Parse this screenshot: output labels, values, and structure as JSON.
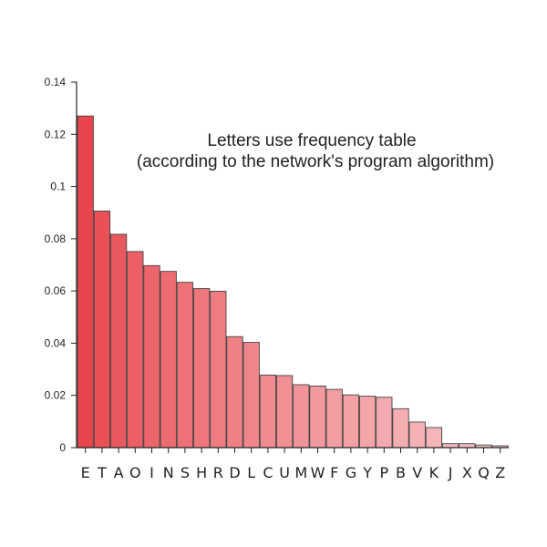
{
  "chart_data": {
    "type": "bar",
    "title": "Letters use frequency table",
    "subtitle": "(according to the network's program algorithm)",
    "xlabel": "",
    "ylabel": "",
    "ylim": [
      0,
      0.14
    ],
    "yticks": [
      "0",
      "0.02",
      "0.04",
      "0.06",
      "0.08",
      "0.1",
      "0.12",
      "0.14"
    ],
    "grid": false,
    "legend": "none",
    "categories": [
      "E",
      "T",
      "A",
      "O",
      "I",
      "N",
      "S",
      "H",
      "R",
      "D",
      "L",
      "C",
      "U",
      "M",
      "W",
      "F",
      "G",
      "Y",
      "P",
      "B",
      "V",
      "K",
      "J",
      "X",
      "Q",
      "Z"
    ],
    "values": [
      0.127,
      0.0906,
      0.0817,
      0.0751,
      0.0697,
      0.0675,
      0.0633,
      0.0609,
      0.0599,
      0.0425,
      0.0403,
      0.0278,
      0.0276,
      0.0241,
      0.0236,
      0.0223,
      0.0202,
      0.0197,
      0.0193,
      0.0149,
      0.0098,
      0.0077,
      0.0015,
      0.0015,
      0.001,
      0.0007
    ],
    "colors": {
      "bar_start": "#e8454c",
      "bar_end": "#f7c6c9",
      "bar_outline": "#444444",
      "axis": "#222222"
    }
  }
}
